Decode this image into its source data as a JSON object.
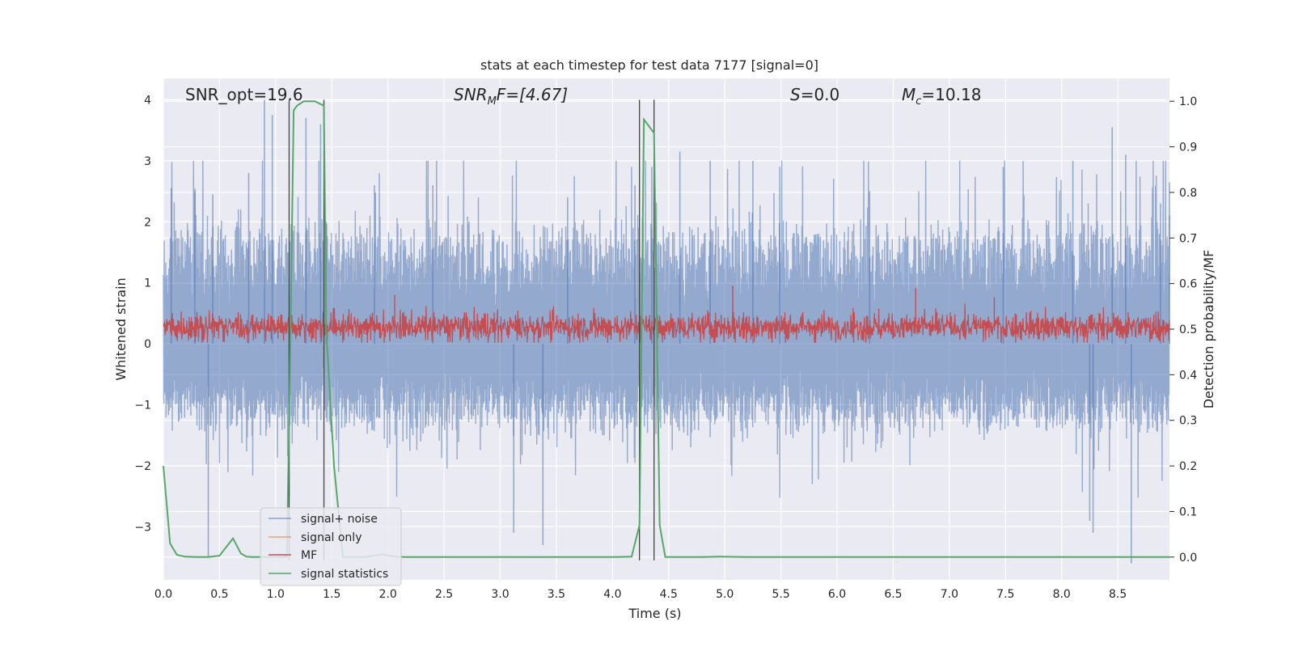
{
  "chart_data": {
    "type": "line",
    "title": "stats at each timestep for test data 7177 [signal=0]",
    "xlabel": "Time (s)",
    "ylabel_left": "Whitened strain",
    "ylabel_right": "Detection probability/MF",
    "xlim": [
      0,
      8.96
    ],
    "ylim_left": [
      -3.87,
      4.35
    ],
    "ylim_right": [
      -0.05,
      1.05
    ],
    "x_ticks": [
      "0.0",
      "0.5",
      "1.0",
      "1.5",
      "2.0",
      "2.5",
      "3.0",
      "3.5",
      "4.0",
      "4.5",
      "5.0",
      "5.5",
      "6.0",
      "6.5",
      "7.0",
      "7.5",
      "8.0",
      "8.5"
    ],
    "y_ticks_left": [
      "4",
      "3",
      "2",
      "1",
      "0",
      "−1",
      "−2",
      "−3"
    ],
    "y_ticks_right": [
      "1.0",
      "0.9",
      "0.8",
      "0.7",
      "0.6",
      "0.5",
      "0.4",
      "0.3",
      "0.2",
      "0.1",
      "0.0"
    ],
    "grid": true,
    "legend_position": "lower-left",
    "colors": {
      "background": "#eaeaf2",
      "signal_noise": "#4c72b0",
      "signal_only": "#dd8452",
      "mf": "#c44e52",
      "statistics": "#55a868",
      "vlines": "#444444"
    },
    "annotations": [
      {
        "id": "snr_opt",
        "text": "SNR_opt=19.6"
      },
      {
        "id": "snr_mf",
        "pre": "SNR",
        "sub": "M",
        "post": "F=[4.67]"
      },
      {
        "id": "s",
        "italic": "S",
        "post": "=0.0"
      },
      {
        "id": "mc",
        "italic": "M",
        "sub": "c",
        "post": "=10.18"
      }
    ],
    "series": [
      {
        "name": "signal+ noise",
        "axis": "left",
        "style": "dense-noise",
        "center": 0.0,
        "envelope": [
          -1.25,
          1.75
        ],
        "peak_range": [
          -3.6,
          4.0
        ],
        "peaks": [
          [
            0.07,
            2.55
          ],
          [
            0.28,
            2.5
          ],
          [
            0.4,
            -3.5
          ],
          [
            0.44,
            2.45
          ],
          [
            0.76,
            2.8
          ],
          [
            0.9,
            4.0
          ],
          [
            0.97,
            3.75
          ],
          [
            1.12,
            -2.5
          ],
          [
            1.27,
            3.7
          ],
          [
            1.4,
            3.6
          ],
          [
            1.45,
            2.0
          ],
          [
            1.88,
            2.6
          ],
          [
            2.4,
            2.6
          ],
          [
            3.12,
            -3.1
          ],
          [
            3.38,
            -3.3
          ],
          [
            3.6,
            2.4
          ],
          [
            4.2,
            2.6
          ],
          [
            4.35,
            2.9
          ],
          [
            4.6,
            3.15
          ],
          [
            4.87,
            3.0
          ],
          [
            5.25,
            3.0
          ],
          [
            5.49,
            2.9
          ],
          [
            6.29,
            2.5
          ],
          [
            7.48,
            2.9
          ],
          [
            8.1,
            3.0
          ],
          [
            8.25,
            -2.9
          ],
          [
            8.28,
            -3.1
          ],
          [
            8.45,
            3.55
          ],
          [
            8.57,
            3.1
          ],
          [
            8.62,
            -3.6
          ],
          [
            8.88,
            2.3
          ],
          [
            8.96,
            2.65
          ]
        ]
      },
      {
        "name": "signal only",
        "axis": "left",
        "values": []
      },
      {
        "name": "MF",
        "axis": "right",
        "style": "dense-noise",
        "center": 0.505,
        "envelope": [
          0.47,
          0.565
        ],
        "peaks": [
          [
            5.07,
            0.595
          ],
          [
            6.7,
            0.59
          ],
          [
            2.06,
            0.575
          ],
          [
            7.4,
            0.57
          ]
        ]
      },
      {
        "name": "signal statistics",
        "axis": "right",
        "x": [
          0.0,
          0.06,
          0.12,
          0.19,
          0.3,
          0.4,
          0.5,
          0.56,
          0.62,
          0.69,
          0.74,
          0.8,
          0.88,
          1.0,
          1.1,
          1.13,
          1.16,
          1.19,
          1.25,
          1.35,
          1.43,
          1.45,
          1.52,
          1.6,
          1.7,
          1.8,
          1.95,
          2.06,
          2.15,
          2.3,
          2.6,
          3.0,
          3.5,
          4.0,
          4.17,
          4.24,
          4.28,
          4.37,
          4.42,
          4.47,
          4.53,
          4.8,
          4.95,
          5.2,
          6.0,
          7.0,
          8.0,
          8.96
        ],
        "y": [
          0.2,
          0.03,
          0.005,
          0.001,
          0.0,
          0.0,
          0.003,
          0.022,
          0.041,
          0.008,
          0.001,
          0.0,
          0.0,
          0.0,
          0.0,
          0.45,
          0.98,
          0.99,
          1.0,
          1.0,
          0.99,
          0.5,
          0.2,
          0.0,
          0.0,
          0.0,
          0.006,
          0.001,
          0.0,
          0.0,
          0.0,
          0.0,
          0.0,
          0.0,
          0.001,
          0.07,
          0.96,
          0.93,
          0.07,
          0.0,
          0.0,
          0.0,
          0.001,
          0.0,
          0.0,
          0.0,
          0.0,
          0.0
        ]
      }
    ],
    "vlines_x": [
      1.12,
      1.43,
      4.24,
      4.37
    ],
    "vlines_yrange_left": [
      -3.55,
      4.0
    ]
  }
}
